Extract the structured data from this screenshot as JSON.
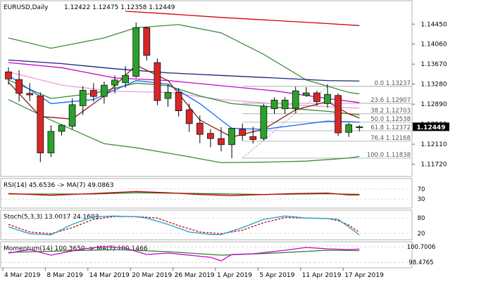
{
  "header": {
    "symbol": "EURUSD,Daily",
    "ohlc": "1.12422 1.12475 1.12358 1.12449"
  },
  "colors": {
    "bull_body": "#2ca02c",
    "bear_body": "#d62728",
    "candle_outline": "#000000",
    "bollinger": "#3a8f3a",
    "ma_fast_dark_red": "#8b1a1a",
    "ma_blue": "#1565ff",
    "ma_green": "#2e8b2e",
    "ma_magenta": "#cc00cc",
    "ma_pink": "#f29bd8",
    "ma_navy": "#1a237e",
    "ma_red_long": "#d50000",
    "fib_line": "#9aa0a6",
    "current_price_bg": "#000000",
    "rsi_line": "#cc0000",
    "rsi_ma": "#2e7d32",
    "stoch_main": "#1aa3c8",
    "stoch_signal": "#cc0000",
    "mom_line": "#cc00cc",
    "mom_ma": "#2e7d32"
  },
  "price_axis": {
    "ticks": [
      "1.14450",
      "1.14060",
      "1.13670",
      "1.13280",
      "1.12890",
      "1.12500",
      "1.12110",
      "1.11720"
    ],
    "current_price": "1.12449"
  },
  "fib_levels": [
    {
      "label": "0.0 1.13237",
      "price": 1.13237
    },
    {
      "label": "23.6 1.12907",
      "price": 1.12907
    },
    {
      "label": "38.2 1.12703",
      "price": 1.12703
    },
    {
      "label": "50.0 1.12538",
      "price": 1.12538
    },
    {
      "label": "61.8 1.12372",
      "price": 1.12372
    },
    {
      "label": "76.4 1.12168",
      "price": 1.12168
    },
    {
      "label": "100.0 1.11838",
      "price": 1.11838
    }
  ],
  "x_axis": {
    "labels": [
      "4 Mar 2019",
      "8 Mar 2019",
      "14 Mar 2019",
      "20 Mar 2019",
      "26 Mar 2019",
      "1 Apr 2019",
      "5 Apr 2019",
      "11 Apr 2019",
      "17 Apr 2019"
    ],
    "label_bars": [
      0,
      4,
      8,
      12,
      16,
      20,
      24,
      28,
      32
    ]
  },
  "chart_data": {
    "type": "candlestick",
    "ylim": [
      1.1155,
      1.147
    ],
    "candles": [
      {
        "o": 1.1352,
        "h": 1.1361,
        "l": 1.1327,
        "c": 1.1338
      },
      {
        "o": 1.1337,
        "h": 1.1355,
        "l": 1.1294,
        "c": 1.131
      },
      {
        "o": 1.131,
        "h": 1.133,
        "l": 1.1295,
        "c": 1.1307
      },
      {
        "o": 1.1305,
        "h": 1.1312,
        "l": 1.1176,
        "c": 1.1194
      },
      {
        "o": 1.1194,
        "h": 1.1248,
        "l": 1.1186,
        "c": 1.1236
      },
      {
        "o": 1.1236,
        "h": 1.125,
        "l": 1.1228,
        "c": 1.1248
      },
      {
        "o": 1.1246,
        "h": 1.13,
        "l": 1.124,
        "c": 1.1288
      },
      {
        "o": 1.1286,
        "h": 1.1324,
        "l": 1.1268,
        "c": 1.1316
      },
      {
        "o": 1.1316,
        "h": 1.133,
        "l": 1.1294,
        "c": 1.1304
      },
      {
        "o": 1.1304,
        "h": 1.1333,
        "l": 1.129,
        "c": 1.1326
      },
      {
        "o": 1.1326,
        "h": 1.1345,
        "l": 1.131,
        "c": 1.1336
      },
      {
        "o": 1.1331,
        "h": 1.1363,
        "l": 1.1321,
        "c": 1.1345
      },
      {
        "o": 1.1343,
        "h": 1.1448,
        "l": 1.134,
        "c": 1.1438
      },
      {
        "o": 1.1438,
        "h": 1.144,
        "l": 1.1374,
        "c": 1.1384
      },
      {
        "o": 1.137,
        "h": 1.1378,
        "l": 1.1287,
        "c": 1.1296
      },
      {
        "o": 1.13,
        "h": 1.1328,
        "l": 1.1284,
        "c": 1.1312
      },
      {
        "o": 1.1312,
        "h": 1.132,
        "l": 1.1265,
        "c": 1.1276
      },
      {
        "o": 1.1278,
        "h": 1.129,
        "l": 1.1235,
        "c": 1.1251
      },
      {
        "o": 1.1252,
        "h": 1.1267,
        "l": 1.1213,
        "c": 1.123
      },
      {
        "o": 1.1232,
        "h": 1.124,
        "l": 1.1205,
        "c": 1.1222
      },
      {
        "o": 1.1222,
        "h": 1.1244,
        "l": 1.1197,
        "c": 1.121
      },
      {
        "o": 1.121,
        "h": 1.1243,
        "l": 1.1184,
        "c": 1.1242
      },
      {
        "o": 1.124,
        "h": 1.1251,
        "l": 1.1218,
        "c": 1.1228
      },
      {
        "o": 1.1226,
        "h": 1.1245,
        "l": 1.1212,
        "c": 1.122
      },
      {
        "o": 1.1222,
        "h": 1.129,
        "l": 1.1218,
        "c": 1.1285
      },
      {
        "o": 1.128,
        "h": 1.1302,
        "l": 1.127,
        "c": 1.1297
      },
      {
        "o": 1.128,
        "h": 1.1303,
        "l": 1.127,
        "c": 1.1297
      },
      {
        "o": 1.1281,
        "h": 1.1323,
        "l": 1.1271,
        "c": 1.1315
      },
      {
        "o": 1.1306,
        "h": 1.1322,
        "l": 1.1303,
        "c": 1.1311
      },
      {
        "o": 1.1311,
        "h": 1.1315,
        "l": 1.1286,
        "c": 1.1294
      },
      {
        "o": 1.129,
        "h": 1.1328,
        "l": 1.1282,
        "c": 1.1308
      },
      {
        "o": 1.1306,
        "h": 1.131,
        "l": 1.1227,
        "c": 1.1233
      },
      {
        "o": 1.1234,
        "h": 1.1253,
        "l": 1.1225,
        "c": 1.1249
      },
      {
        "o": 1.1243,
        "h": 1.1248,
        "l": 1.1236,
        "c": 1.1245
      }
    ],
    "overlays": {
      "bb_upper": [
        [
          0,
          1.1418
        ],
        [
          4,
          1.1398
        ],
        [
          9,
          1.1418
        ],
        [
          12,
          1.1438
        ],
        [
          16,
          1.1444
        ],
        [
          20,
          1.1428
        ],
        [
          24,
          1.1386
        ],
        [
          28,
          1.1336
        ],
        [
          32,
          1.1312
        ],
        [
          33,
          1.1309
        ]
      ],
      "bb_lower": [
        [
          0,
          1.1298
        ],
        [
          4,
          1.1258
        ],
        [
          9,
          1.1212
        ],
        [
          12,
          1.1204
        ],
        [
          16,
          1.119
        ],
        [
          20,
          1.1175
        ],
        [
          24,
          1.1176
        ],
        [
          28,
          1.1178
        ],
        [
          32,
          1.1184
        ],
        [
          33,
          1.1187
        ]
      ],
      "ma_short_dark_red": [
        [
          0,
          1.1332
        ],
        [
          3,
          1.1265
        ],
        [
          6,
          1.126
        ],
        [
          9,
          1.1305
        ],
        [
          12,
          1.1365
        ],
        [
          15,
          1.1335
        ],
        [
          18,
          1.1258
        ],
        [
          21,
          1.1225
        ],
        [
          24,
          1.124
        ],
        [
          27,
          1.1278
        ],
        [
          30,
          1.1294
        ],
        [
          32,
          1.127
        ],
        [
          33,
          1.1262
        ]
      ],
      "ma_blue": [
        [
          0,
          1.1345
        ],
        [
          4,
          1.129
        ],
        [
          8,
          1.1298
        ],
        [
          12,
          1.1335
        ],
        [
          15,
          1.1328
        ],
        [
          18,
          1.129
        ],
        [
          21,
          1.1242
        ],
        [
          24,
          1.124
        ],
        [
          27,
          1.1248
        ],
        [
          30,
          1.1256
        ],
        [
          33,
          1.1254
        ]
      ],
      "ma_green": [
        [
          0,
          1.1336
        ],
        [
          4,
          1.13
        ],
        [
          8,
          1.131
        ],
        [
          12,
          1.133
        ],
        [
          15,
          1.1325
        ],
        [
          18,
          1.1305
        ],
        [
          21,
          1.129
        ],
        [
          24,
          1.1285
        ],
        [
          27,
          1.128
        ],
        [
          30,
          1.1275
        ],
        [
          33,
          1.1268
        ]
      ],
      "ma_magenta": [
        [
          0,
          1.137
        ],
        [
          5,
          1.136
        ],
        [
          10,
          1.134
        ],
        [
          15,
          1.1335
        ],
        [
          20,
          1.1325
        ],
        [
          25,
          1.1315
        ],
        [
          30,
          1.13
        ],
        [
          33,
          1.1292
        ]
      ],
      "ma_pink": [
        [
          0,
          1.1352
        ],
        [
          5,
          1.1326
        ],
        [
          10,
          1.1314
        ],
        [
          15,
          1.1312
        ],
        [
          20,
          1.1298
        ],
        [
          25,
          1.129
        ],
        [
          30,
          1.1284
        ],
        [
          33,
          1.1281
        ]
      ],
      "ma_navy": [
        [
          0,
          1.1375
        ],
        [
          5,
          1.1368
        ],
        [
          10,
          1.1358
        ],
        [
          15,
          1.135
        ],
        [
          20,
          1.1345
        ],
        [
          25,
          1.134
        ],
        [
          30,
          1.1335
        ],
        [
          33,
          1.1334
        ]
      ],
      "ma_red_long": [
        [
          11,
          1.147
        ],
        [
          15,
          1.1465
        ],
        [
          20,
          1.1458
        ],
        [
          25,
          1.1452
        ],
        [
          30,
          1.1446
        ],
        [
          33,
          1.1442
        ]
      ]
    },
    "rsi": {
      "label": "RSI(14) 45.6536 -> MA(7) 49.0863",
      "ticks": [
        "70",
        "30"
      ],
      "ylim": [
        0,
        100
      ],
      "values": [
        [
          0,
          52
        ],
        [
          4,
          45
        ],
        [
          8,
          52
        ],
        [
          12,
          60
        ],
        [
          15,
          55
        ],
        [
          18,
          48
        ],
        [
          21,
          44
        ],
        [
          24,
          48
        ],
        [
          27,
          52
        ],
        [
          30,
          54
        ],
        [
          32,
          46
        ],
        [
          33,
          46
        ]
      ],
      "ma": [
        [
          0,
          50
        ],
        [
          8,
          50
        ],
        [
          12,
          55
        ],
        [
          18,
          52
        ],
        [
          24,
          48
        ],
        [
          30,
          51
        ],
        [
          33,
          49
        ]
      ]
    },
    "stoch": {
      "label": "Stoch(5,3,3) 13.0017 24.1603",
      "ticks": [
        "80",
        "20"
      ],
      "ylim": [
        0,
        100
      ],
      "main": [
        [
          0,
          45
        ],
        [
          2,
          18
        ],
        [
          4,
          14
        ],
        [
          6,
          55
        ],
        [
          8,
          85
        ],
        [
          10,
          88
        ],
        [
          12,
          85
        ],
        [
          13,
          80
        ],
        [
          15,
          55
        ],
        [
          17,
          25
        ],
        [
          19,
          15
        ],
        [
          20,
          15
        ],
        [
          22,
          42
        ],
        [
          24,
          75
        ],
        [
          26,
          88
        ],
        [
          28,
          80
        ],
        [
          30,
          78
        ],
        [
          31,
          75
        ],
        [
          32,
          45
        ],
        [
          33,
          13
        ]
      ],
      "signal": [
        [
          0,
          55
        ],
        [
          2,
          25
        ],
        [
          4,
          18
        ],
        [
          6,
          42
        ],
        [
          8,
          75
        ],
        [
          10,
          86
        ],
        [
          12,
          86
        ],
        [
          14,
          80
        ],
        [
          16,
          50
        ],
        [
          18,
          25
        ],
        [
          20,
          18
        ],
        [
          22,
          32
        ],
        [
          24,
          62
        ],
        [
          26,
          82
        ],
        [
          28,
          80
        ],
        [
          30,
          78
        ],
        [
          31,
          70
        ],
        [
          32,
          52
        ],
        [
          33,
          24
        ]
      ]
    },
    "momentum": {
      "label": "Momentum(14) 100.3650 -> MA(7) 100.1466",
      "ticks": [
        "100.7006",
        "98.4765"
      ],
      "ylim": [
        97.9,
        101.0
      ],
      "values": [
        [
          0,
          99.8
        ],
        [
          2,
          100.3
        ],
        [
          4,
          99.5
        ],
        [
          7,
          100.4
        ],
        [
          9,
          100.7
        ],
        [
          11,
          100.5
        ],
        [
          13,
          99.6
        ],
        [
          15,
          99.8
        ],
        [
          17,
          99.5
        ],
        [
          19,
          99.2
        ],
        [
          20,
          98.7
        ],
        [
          21,
          99.6
        ],
        [
          23,
          99.7
        ],
        [
          26,
          100.2
        ],
        [
          28,
          100.6
        ],
        [
          30,
          100.4
        ],
        [
          32,
          100.3
        ],
        [
          33,
          100.37
        ]
      ],
      "ma": [
        [
          0,
          99.9
        ],
        [
          5,
          100.1
        ],
        [
          10,
          100.3
        ],
        [
          15,
          100.0
        ],
        [
          20,
          99.5
        ],
        [
          25,
          99.8
        ],
        [
          30,
          100.2
        ],
        [
          33,
          100.15
        ]
      ]
    }
  }
}
